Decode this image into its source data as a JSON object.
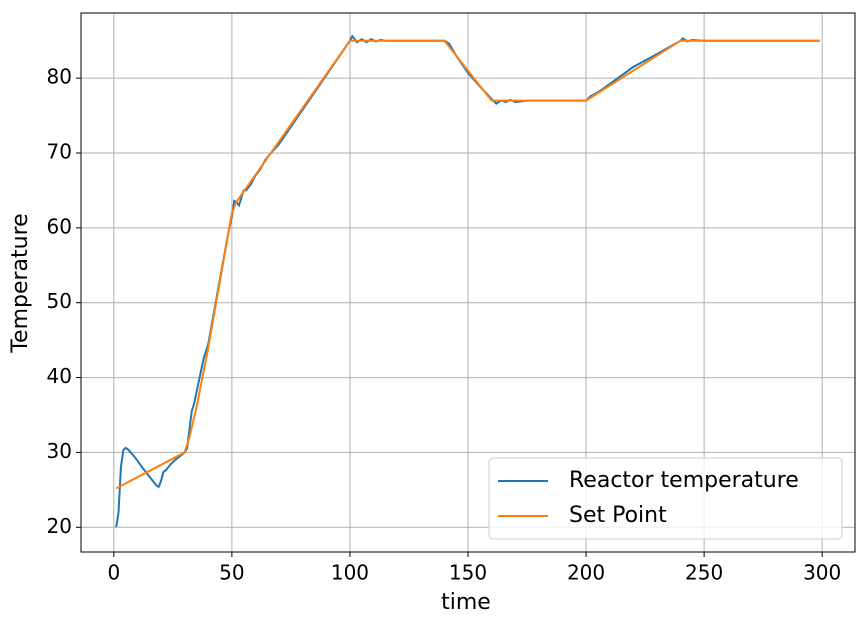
{
  "chart_data": {
    "type": "line",
    "xlabel": "time",
    "ylabel": "Temperature",
    "xlim": [
      -13.9,
      313.9
    ],
    "ylim": [
      16.7,
      88.7
    ],
    "xticks": [
      0,
      50,
      100,
      150,
      200,
      250,
      300
    ],
    "yticks": [
      20,
      30,
      40,
      50,
      60,
      70,
      80
    ],
    "grid": true,
    "legend": "lower right",
    "series": [
      {
        "name": "Reactor temperature",
        "color": "#1f77b4",
        "x": [
          1,
          2,
          3,
          4,
          5,
          6,
          8,
          10,
          12,
          14,
          16,
          18,
          19,
          20,
          21,
          22,
          24,
          26,
          28,
          30,
          31,
          32,
          33,
          34,
          36,
          38,
          40,
          42,
          44,
          46,
          48,
          50,
          51,
          52,
          53,
          54,
          55,
          56,
          58,
          60,
          62,
          64,
          66,
          70,
          80,
          90,
          100,
          101,
          103,
          105,
          107,
          109,
          111,
          113,
          115,
          120,
          130,
          138,
          140,
          142,
          145,
          150,
          155,
          160,
          162,
          164,
          166,
          168,
          170,
          175,
          180,
          185,
          190,
          195,
          200,
          202,
          205,
          210,
          220,
          230,
          240,
          241,
          243,
          245,
          250,
          260,
          280,
          299
        ],
        "values": [
          20,
          22,
          28,
          30.3,
          30.6,
          30.4,
          29.7,
          28.9,
          28,
          27.2,
          26.4,
          25.6,
          25.4,
          26.2,
          27.4,
          27.6,
          28.4,
          29,
          29.5,
          30,
          30.5,
          33,
          35.5,
          36.5,
          39.5,
          42.5,
          44.5,
          48,
          51.5,
          55,
          58.5,
          61.5,
          63.6,
          63.4,
          63,
          64,
          65,
          65,
          65.8,
          67,
          67.8,
          69,
          69.8,
          71.2,
          75.8,
          80.4,
          85,
          85.6,
          84.8,
          85.2,
          84.8,
          85.2,
          84.9,
          85.1,
          85,
          85,
          85,
          85,
          85,
          84.6,
          83,
          80.7,
          78.9,
          77.2,
          76.6,
          77,
          76.8,
          77.1,
          76.8,
          77,
          77,
          77,
          77,
          77,
          77,
          77.6,
          78.1,
          79.2,
          81.5,
          83.2,
          85,
          85.3,
          84.9,
          85.1,
          85,
          85,
          85,
          85
        ]
      },
      {
        "name": "Set Point",
        "color": "#ff7f0e",
        "x": [
          1,
          30,
          32,
          35,
          40,
          45,
          50,
          52,
          100,
          140,
          160,
          200,
          240,
          299
        ],
        "values": [
          25.2,
          30,
          32,
          36,
          44,
          53,
          62,
          63.5,
          85,
          85,
          77,
          77,
          85,
          85
        ]
      }
    ]
  }
}
